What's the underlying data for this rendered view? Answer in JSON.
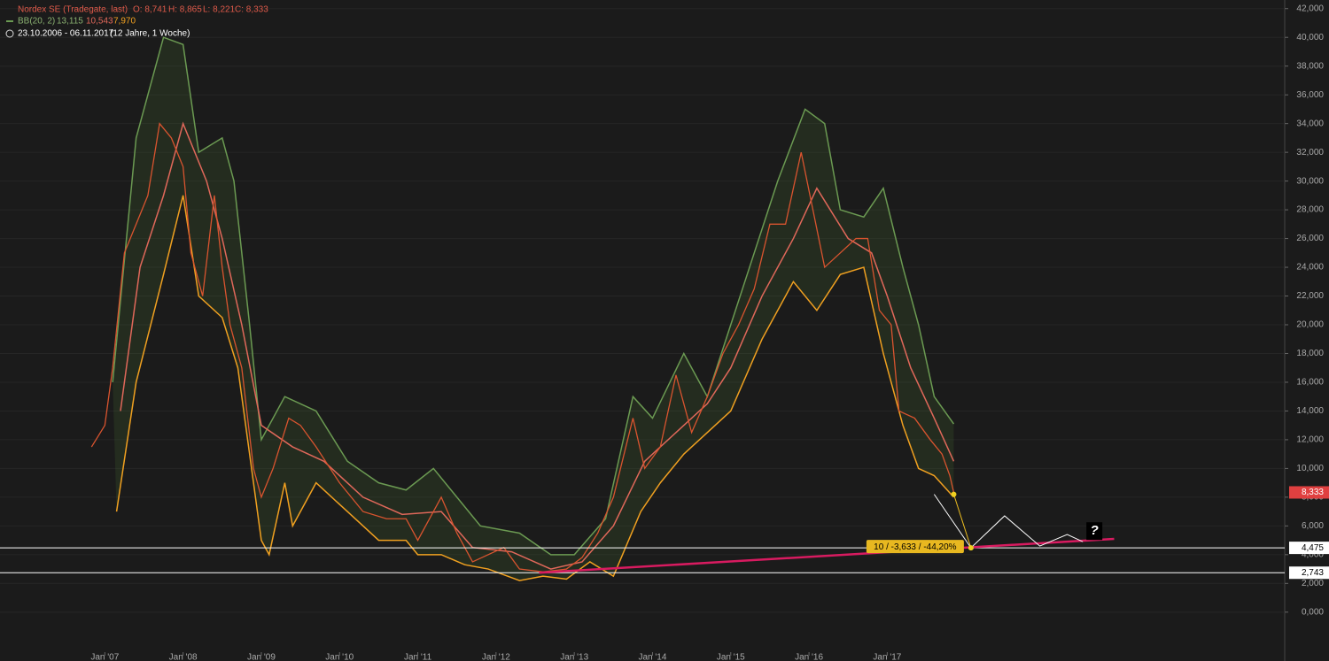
{
  "chart_data": {
    "type": "line",
    "header": {
      "symbol": "Nordex SE (Tradegate, last)",
      "ohlc": [
        "O: 8,741",
        "H: 8,865",
        "L: 8,221",
        "C: 8,333"
      ],
      "indicator": "BB(20, 2)",
      "indicator_values": [
        "13,115",
        "10,543",
        "7,970"
      ],
      "range": "23.10.2006 - 06.11.2017",
      "span": "(12 Jahre, 1 Woche)"
    },
    "xlim": [
      2005.66,
      2022.08
    ],
    "ylim": [
      -3.4,
      42.6
    ],
    "xticks": [
      {
        "value": 2007,
        "label": "Jan '07"
      },
      {
        "value": 2008,
        "label": "Jan '08"
      },
      {
        "value": 2009,
        "label": "Jan '09"
      },
      {
        "value": 2010,
        "label": "Jan '10"
      },
      {
        "value": 2011,
        "label": "Jan '11"
      },
      {
        "value": 2012,
        "label": "Jan '12"
      },
      {
        "value": 2013,
        "label": "Jan '13"
      },
      {
        "value": 2014,
        "label": "Jan '14"
      },
      {
        "value": 2015,
        "label": "Jan '15"
      },
      {
        "value": 2016,
        "label": "Jan '16"
      },
      {
        "value": 2017,
        "label": "Jan '17"
      }
    ],
    "yticks": [
      {
        "value": 0,
        "label": "0,000"
      },
      {
        "value": 2,
        "label": "2,000"
      },
      {
        "value": 4,
        "label": "4,000"
      },
      {
        "value": 6,
        "label": "6,000"
      },
      {
        "value": 8,
        "label": "8,000"
      },
      {
        "value": 10,
        "label": "10,000"
      },
      {
        "value": 12,
        "label": "12,000"
      },
      {
        "value": 14,
        "label": "14,000"
      },
      {
        "value": 16,
        "label": "16,000"
      },
      {
        "value": 18,
        "label": "18,000"
      },
      {
        "value": 20,
        "label": "20,000"
      },
      {
        "value": 22,
        "label": "22,000"
      },
      {
        "value": 24,
        "label": "24,000"
      },
      {
        "value": 26,
        "label": "26,000"
      },
      {
        "value": 28,
        "label": "28,000"
      },
      {
        "value": 30,
        "label": "30,000"
      },
      {
        "value": 32,
        "label": "32,000"
      },
      {
        "value": 34,
        "label": "34,000"
      },
      {
        "value": 36,
        "label": "36,000"
      },
      {
        "value": 38,
        "label": "38,000"
      },
      {
        "value": 40,
        "label": "40,000"
      },
      {
        "value": 42,
        "label": "42,000"
      }
    ],
    "grid": true,
    "series": [
      {
        "color": "#6b9a52",
        "x": [
          2007.1,
          2007.4,
          2007.75,
          2008.0,
          2008.2,
          2008.5,
          2008.65,
          2008.85,
          2009.0,
          2009.3,
          2009.7,
          2010.1,
          2010.5,
          2010.85,
          2011.2,
          2011.5,
          2011.8,
          2012.3,
          2012.7,
          2013.0,
          2013.4,
          2013.75,
          2014.0,
          2014.4,
          2014.7,
          2015.0,
          2015.3,
          2015.6,
          2015.95,
          2016.2,
          2016.4,
          2016.7,
          2016.95,
          2017.2,
          2017.4,
          2017.6,
          2017.85
        ],
        "values": [
          16,
          33,
          40,
          39.5,
          32,
          33,
          30,
          20,
          12,
          15,
          14,
          10.5,
          9,
          8.5,
          10,
          8,
          6,
          5.5,
          4,
          4,
          6.5,
          15,
          13.5,
          18,
          15,
          20,
          25,
          30,
          35,
          34,
          28,
          27.5,
          29.5,
          24,
          20,
          15,
          13.1
        ]
      },
      {
        "color": "#e0685a",
        "x": [
          2007.2,
          2007.45,
          2007.75,
          2008.0,
          2008.3,
          2008.5,
          2008.75,
          2009.0,
          2009.4,
          2009.8,
          2010.3,
          2010.8,
          2011.3,
          2011.7,
          2012.2,
          2012.7,
          2013.1,
          2013.5,
          2013.9,
          2014.3,
          2014.7,
          2015.0,
          2015.4,
          2015.8,
          2016.1,
          2016.5,
          2016.8,
          2017.0,
          2017.3,
          2017.6,
          2017.85
        ],
        "values": [
          14,
          24,
          29,
          34,
          30,
          26,
          20,
          13,
          11.5,
          10.5,
          8,
          6.8,
          7,
          4.5,
          4.2,
          3,
          3.5,
          6,
          10.5,
          12.5,
          14.5,
          17,
          22,
          26,
          29.5,
          26,
          25,
          22,
          17,
          13.5,
          10.5
        ]
      },
      {
        "color": "#f0a020",
        "x": [
          2007.15,
          2007.4,
          2007.75,
          2008.0,
          2008.2,
          2008.5,
          2008.7,
          2008.9,
          2009.0,
          2009.1,
          2009.3,
          2009.4,
          2009.7,
          2010.1,
          2010.5,
          2010.85,
          2011.0,
          2011.3,
          2011.6,
          2011.9,
          2012.3,
          2012.6,
          2012.9,
          2013.2,
          2013.5,
          2013.85,
          2014.1,
          2014.4,
          2014.7,
          2015.0,
          2015.4,
          2015.8,
          2016.1,
          2016.4,
          2016.7,
          2016.95,
          2017.2,
          2017.4,
          2017.6,
          2017.85
        ],
        "values": [
          7,
          16,
          23.5,
          29,
          22,
          20.5,
          17,
          9,
          5,
          4,
          9,
          6,
          9,
          7,
          5,
          5,
          4,
          4,
          3.3,
          3,
          2.2,
          2.5,
          2.3,
          3.5,
          2.5,
          7,
          9,
          11,
          12.5,
          14,
          19,
          23,
          21,
          23.5,
          24,
          18,
          13,
          10,
          9.5,
          8
        ]
      },
      {
        "color": "#d9542f",
        "x": [
          2006.83,
          2007.0,
          2007.1,
          2007.25,
          2007.4,
          2007.55,
          2007.7,
          2007.85,
          2008.0,
          2008.1,
          2008.25,
          2008.4,
          2008.5,
          2008.6,
          2008.75,
          2008.9,
          2009.0,
          2009.15,
          2009.35,
          2009.5,
          2009.7,
          2010.0,
          2010.3,
          2010.6,
          2010.85,
          2011.0,
          2011.15,
          2011.3,
          2011.5,
          2011.7,
          2011.9,
          2012.1,
          2012.3,
          2012.6,
          2012.9,
          2013.1,
          2013.3,
          2013.5,
          2013.75,
          2013.9,
          2014.1,
          2014.3,
          2014.5,
          2014.7,
          2014.9,
          2015.1,
          2015.3,
          2015.5,
          2015.7,
          2015.9,
          2016.05,
          2016.2,
          2016.4,
          2016.6,
          2016.75,
          2016.9,
          2017.05,
          2017.15,
          2017.35,
          2017.55,
          2017.7,
          2017.8,
          2017.85
        ],
        "values": [
          11.5,
          13,
          17,
          25,
          27,
          29,
          34,
          33,
          31,
          25,
          22,
          29,
          24,
          20,
          17,
          10,
          8,
          10,
          13.5,
          13,
          11.5,
          9,
          7,
          6.5,
          6.5,
          5,
          6.5,
          8,
          5.5,
          3.5,
          4,
          4.5,
          3,
          2.8,
          3,
          3.8,
          5.5,
          8,
          13.5,
          10,
          11.5,
          16.5,
          12.5,
          15,
          18,
          20,
          22.5,
          27,
          27,
          32,
          28,
          24,
          25,
          26,
          26,
          21,
          20,
          14,
          13.5,
          12,
          11,
          9.5,
          8.333
        ]
      }
    ],
    "last_price": {
      "value": 8.333,
      "label": "8,333"
    },
    "levels": [
      {
        "value": 4.475,
        "label": "4,475"
      },
      {
        "value": 2.743,
        "label": "2,743"
      }
    ],
    "trendline": {
      "x": [
        2012.55,
        2019.9
      ],
      "values": [
        2.743,
        5.1
      ]
    },
    "target": {
      "x": [
        2017.85,
        2018.07
      ],
      "values": [
        8.2,
        4.475
      ]
    },
    "projection": {
      "x": [
        2017.6,
        2018.07,
        2018.5,
        2018.95,
        2019.3,
        2019.5
      ],
      "values": [
        8.2,
        4.475,
        6.7,
        4.6,
        5.4,
        4.9
      ]
    },
    "annotation": "10 / -3,633 / -44,20%",
    "question": "?"
  }
}
